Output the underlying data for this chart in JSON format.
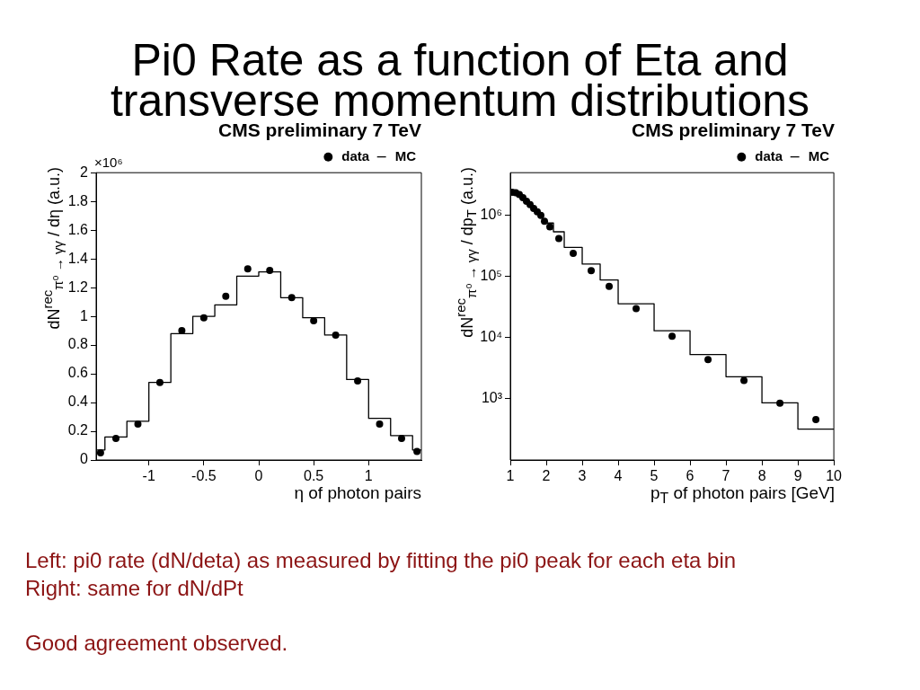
{
  "chart_data": [
    {
      "type": "other",
      "title": "Pi0 Rate as a function of Eta and transverse momentum distributions"
    },
    {
      "type": "histogram",
      "title": "CMS preliminary 7 TeV",
      "xlabel": "η of photon pairs",
      "ylabel": "dN$^{rec}$$_{π⁰ → γγ}$ / dη (a.u.)",
      "xlim": [
        -1.48,
        1.48
      ],
      "xticks": [
        -1,
        -0.5,
        0,
        0.5,
        1
      ],
      "ylim": [
        0,
        2
      ],
      "yticks": [
        0,
        0.2,
        0.4,
        0.6,
        0.8,
        1,
        1.2,
        1.4,
        1.6,
        1.8,
        2
      ],
      "annotations": [
        "×10⁶"
      ],
      "legend": "top right",
      "marker": "circle",
      "series": [
        {
          "name": "data",
          "type": "scatter",
          "color": "#000000",
          "x": [
            -1.44,
            -1.3,
            -1.1,
            -0.9,
            -0.7,
            -0.5,
            -0.3,
            -0.1,
            0.1,
            0.3,
            0.5,
            0.7,
            0.9,
            1.1,
            1.3,
            1.44
          ],
          "values": [
            0.05,
            0.15,
            0.25,
            0.54,
            0.9,
            0.99,
            1.14,
            1.33,
            1.32,
            1.13,
            0.97,
            0.87,
            0.55,
            0.25,
            0.15,
            0.06
          ]
        },
        {
          "name": "MC",
          "type": "histogram",
          "color": "#000000",
          "bins": [
            -1.48,
            -1.4,
            -1.2,
            -1,
            -0.8,
            -0.6,
            -0.4,
            -0.2,
            0,
            0.2,
            0.4,
            0.6,
            0.8,
            1,
            1.2,
            1.4,
            1.48
          ],
          "values": [
            0.07,
            0.16,
            0.27,
            0.54,
            0.88,
            1,
            1.08,
            1.28,
            1.31,
            1.13,
            0.99,
            0.87,
            0.56,
            0.29,
            0.17,
            0.07
          ]
        }
      ]
    },
    {
      "type": "histogram",
      "title": "CMS preliminary 7 TeV",
      "xlabel": "p$_{T}$ of photon pairs [GeV]",
      "ylabel": "dN$^{rec}$$_{π⁰ → γγ}$ / dp$_{T}$ (a.u.)",
      "xlim": [
        1,
        10
      ],
      "xticks": [
        1,
        2,
        3,
        4,
        5,
        6,
        7,
        8,
        9,
        10
      ],
      "ylim": [
        100,
        5000000
      ],
      "yticks": [
        {
          "value": 1000,
          "label": "10³"
        },
        {
          "value": 10000,
          "label": "10⁴"
        },
        {
          "value": 100000,
          "label": "10⁵"
        },
        {
          "value": 1000000,
          "label": "10⁶"
        }
      ],
      "log": "y",
      "legend": "top right",
      "marker": "circle",
      "series": [
        {
          "name": "data",
          "type": "scatter",
          "color": "#000000",
          "x": [
            1.05,
            1.15,
            1.25,
            1.35,
            1.45,
            1.55,
            1.65,
            1.75,
            1.85,
            1.95,
            2.1,
            2.35,
            2.75,
            3.25,
            3.75,
            4.5,
            5.5,
            6.5,
            7.5,
            8.5,
            9.5
          ],
          "values": [
            2400000,
            2350000,
            2200000,
            1950000,
            1700000,
            1500000,
            1300000,
            1150000,
            1000000,
            800000,
            650000,
            420000,
            240000,
            125000,
            69000,
            30000,
            10600,
            4400,
            2000,
            850,
            460
          ]
        },
        {
          "name": "MC",
          "type": "histogram",
          "color": "#000000",
          "bins": [
            2,
            2.2,
            2.5,
            3,
            3.5,
            4,
            5,
            6,
            7,
            8,
            9,
            10
          ],
          "values": [
            750000,
            540000,
            300000,
            160000,
            88000,
            36000,
            13000,
            5300,
            2300,
            860,
            320
          ]
        }
      ]
    },
    {
      "type": "other",
      "annotations": [
        "Left: pi0 rate (dN/deta) as measured by fitting the pi0 peak for each eta bin",
        "Right: same for dN/dPt",
        "Good agreement observed."
      ]
    }
  ]
}
